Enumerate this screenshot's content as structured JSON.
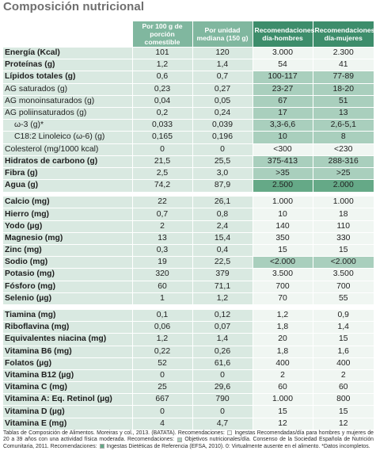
{
  "title": "Composición nutricional",
  "headers": [
    "",
    "Por 100 g de porción comestible",
    "Por unidad mediana (150 g)",
    "Recomendaciones día-hombres",
    "Recomendaciones día-mujeres"
  ],
  "colors": {
    "header_light": "#80b79f",
    "header_dark": "#3d8d6b",
    "row_bg": "#d9e9e1",
    "objective_bg": "#a9cfbd",
    "efsa_bg": "#65a987",
    "title_color": "#6f6f6f"
  },
  "groups": [
    [
      {
        "label": "Energía (Kcal)",
        "v1": "101",
        "v2": "120",
        "r1": "3.000",
        "r2": "2.300"
      },
      {
        "label": "Proteínas (g)",
        "v1": "1,2",
        "v2": "1,4",
        "r1": "54",
        "r2": "41"
      },
      {
        "label": "Lípidos totales (g)",
        "v1": "0,6",
        "v2": "0,7",
        "r1": "100-117",
        "r2": "77-89"
      },
      {
        "label": "AG saturados (g)",
        "v1": "0,23",
        "v2": "0,27",
        "r1": "23-27",
        "r2": "18-20"
      },
      {
        "label": "AG monoinsaturados (g)",
        "v1": "0,04",
        "v2": "0,05",
        "r1": "67",
        "r2": "51"
      },
      {
        "label": "AG poliinsaturados (g)",
        "v1": "0,2",
        "v2": "0,24",
        "r1": "17",
        "r2": "13"
      },
      {
        "label": "ω-3 (g)*",
        "v1": "0,033",
        "v2": "0,039",
        "r1": "3,3-6,6",
        "r2": "2,6-5,1"
      },
      {
        "label": "C18:2 Linoleico (ω-6) (g)",
        "v1": "0,165",
        "v2": "0,196",
        "r1": "10",
        "r2": "8"
      },
      {
        "label": "Colesterol (mg/1000 kcal)",
        "v1": "0",
        "v2": "0",
        "r1": "<300",
        "r2": "<230"
      },
      {
        "label": "Hidratos de carbono (g)",
        "v1": "21,5",
        "v2": "25,5",
        "r1": "375-413",
        "r2": "288-316"
      },
      {
        "label": "Fibra (g)",
        "v1": "2,5",
        "v2": "3,0",
        "r1": ">35",
        "r2": ">25"
      },
      {
        "label": "Agua (g)",
        "v1": "74,2",
        "v2": "87,9",
        "r1": "2.500",
        "r2": "2.000"
      }
    ],
    [
      {
        "label": "Calcio (mg)",
        "v1": "22",
        "v2": "26,1",
        "r1": "1.000",
        "r2": "1.000"
      },
      {
        "label": "Hierro (mg)",
        "v1": "0,7",
        "v2": "0,8",
        "r1": "10",
        "r2": "18"
      },
      {
        "label": "Yodo (µg)",
        "v1": "2",
        "v2": "2,4",
        "r1": "140",
        "r2": "110"
      },
      {
        "label": "Magnesio (mg)",
        "v1": "13",
        "v2": "15,4",
        "r1": "350",
        "r2": "330"
      },
      {
        "label": "Zinc (mg)",
        "v1": "0,3",
        "v2": "0,4",
        "r1": "15",
        "r2": "15"
      },
      {
        "label": "Sodio (mg)",
        "v1": "19",
        "v2": "22,5",
        "r1": "<2.000",
        "r2": "<2.000"
      },
      {
        "label": "Potasio (mg)",
        "v1": "320",
        "v2": "379",
        "r1": "3.500",
        "r2": "3.500"
      },
      {
        "label": "Fósforo (mg)",
        "v1": "60",
        "v2": "71,1",
        "r1": "700",
        "r2": "700"
      },
      {
        "label": "Selenio (µg)",
        "v1": "1",
        "v2": "1,2",
        "r1": "70",
        "r2": "55"
      }
    ],
    [
      {
        "label": "Tiamina (mg)",
        "v1": "0,1",
        "v2": "0,12",
        "r1": "1,2",
        "r2": "0,9"
      },
      {
        "label": "Riboflavina (mg)",
        "v1": "0,06",
        "v2": "0,07",
        "r1": "1,8",
        "r2": "1,4"
      },
      {
        "label": "Equivalentes niacina (mg)",
        "v1": "1,2",
        "v2": "1,4",
        "r1": "20",
        "r2": "15"
      },
      {
        "label": "Vitamina B6 (mg)",
        "v1": "0,22",
        "v2": "0,26",
        "r1": "1,8",
        "r2": "1,6"
      },
      {
        "label": "Folatos (µg)",
        "v1": "52",
        "v2": "61,6",
        "r1": "400",
        "r2": "400"
      },
      {
        "label": "Vitamina B12 (µg)",
        "v1": "0",
        "v2": "0",
        "r1": "2",
        "r2": "2"
      },
      {
        "label": "Vitamina C (mg)",
        "v1": "25",
        "v2": "29,6",
        "r1": "60",
        "r2": "60"
      },
      {
        "label": "Vitamina A: Eq. Retinol (µg)",
        "v1": "667",
        "v2": "790",
        "r1": "1.000",
        "r2": "800"
      },
      {
        "label": "Vitamina D (µg)",
        "v1": "0",
        "v2": "0",
        "r1": "15",
        "r2": "15"
      },
      {
        "label": "Vitamina E (mg)",
        "v1": "4",
        "v2": "4,7",
        "r1": "12",
        "r2": "12"
      }
    ]
  ],
  "footnote": {
    "part1": "Tablas de Composición de Alimentos. Moreiras y col., 2013. (BATATA). Recomendaciones:",
    "part2": "Ingestas Recomendadas/día para hombres y mujeres de 20 a 39 años con una actividad física moderada. Recomendaciones:",
    "part3": "Objetivos nutricionales/día. Consenso de la Sociedad Española de Nutrición Comunitaria, 2011. Recomendaciones:",
    "part4": "Ingestas Dietéticas de Referencia (EFSA, 2010). 0: Virtualmente ausente en el alimento. *Datos incompletos."
  }
}
